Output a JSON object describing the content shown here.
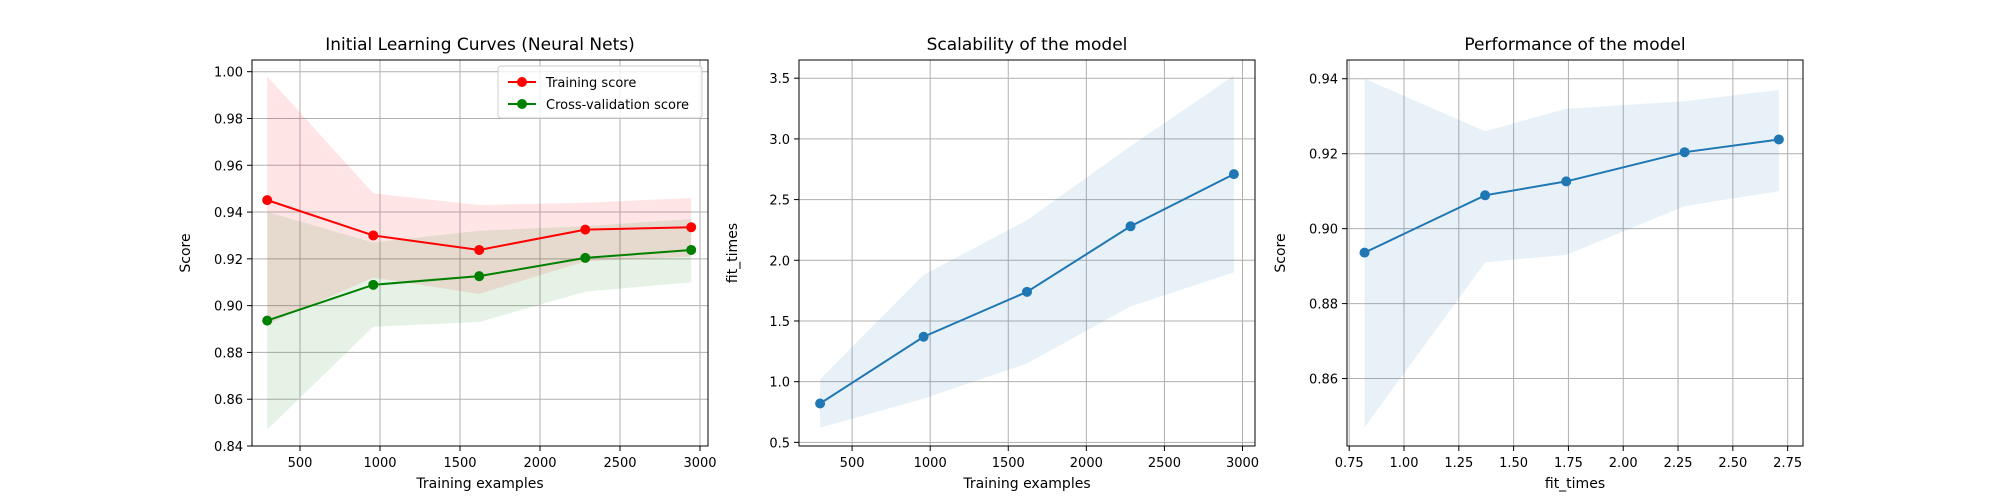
{
  "chart_data": [
    {
      "type": "line",
      "title": "Initial Learning Curves (Neural Nets)",
      "xlabel": "Training examples",
      "ylabel": "Score",
      "xlim": [
        200,
        3050
      ],
      "ylim": [
        0.84,
        1.005
      ],
      "xticks": [
        500,
        1000,
        1500,
        2000,
        2500,
        3000
      ],
      "yticks": [
        0.84,
        0.86,
        0.88,
        0.9,
        0.92,
        0.94,
        0.96,
        0.98,
        1.0
      ],
      "ytick_decimals": 2,
      "xtick_decimals": 0,
      "grid": true,
      "legend": "top-right",
      "x": [
        295,
        958,
        1620,
        2283,
        2945
      ],
      "series": [
        {
          "name": "Training score",
          "color": "#ff0000",
          "fill": "#ff0000",
          "values": [
            0.9451,
            0.93,
            0.9238,
            0.9325,
            0.9335
          ],
          "lower": [
            0.892,
            0.912,
            0.905,
            0.919,
            0.921
          ],
          "upper": [
            0.998,
            0.948,
            0.943,
            0.944,
            0.946
          ]
        },
        {
          "name": "Cross-validation score",
          "color": "#008000",
          "fill": "#008000",
          "values": [
            0.8936,
            0.9089,
            0.9126,
            0.9204,
            0.9238
          ],
          "lower": [
            0.847,
            0.891,
            0.893,
            0.906,
            0.91
          ],
          "upper": [
            0.94,
            0.927,
            0.932,
            0.934,
            0.937
          ]
        }
      ]
    },
    {
      "type": "line",
      "title": "Scalability of the model",
      "xlabel": "Training examples",
      "ylabel": "fit_times",
      "xlim": [
        160,
        3080
      ],
      "ylim": [
        0.47,
        3.65
      ],
      "xticks": [
        500,
        1000,
        1500,
        2000,
        2500,
        3000
      ],
      "yticks": [
        0.5,
        1.0,
        1.5,
        2.0,
        2.5,
        3.0,
        3.5
      ],
      "ytick_decimals": 1,
      "xtick_decimals": 0,
      "grid": true,
      "legend": "none",
      "x": [
        295,
        958,
        1620,
        2283,
        2945
      ],
      "series": [
        {
          "name": "",
          "color": "#1f77b4",
          "fill": "#1f77b4",
          "values": [
            0.82,
            1.37,
            1.74,
            2.28,
            2.71
          ],
          "lower": [
            0.62,
            0.86,
            1.15,
            1.62,
            1.9
          ],
          "upper": [
            1.02,
            1.88,
            2.33,
            2.94,
            3.52
          ]
        }
      ]
    },
    {
      "type": "line",
      "title": "Performance of the model",
      "xlabel": "fit_times",
      "ylabel": "Score",
      "xlim": [
        0.74,
        2.82
      ],
      "ylim": [
        0.842,
        0.945
      ],
      "xticks": [
        0.75,
        1.0,
        1.25,
        1.5,
        1.75,
        2.0,
        2.25,
        2.5,
        2.75
      ],
      "yticks": [
        0.86,
        0.88,
        0.9,
        0.92,
        0.94
      ],
      "ytick_decimals": 2,
      "xtick_decimals": 2,
      "grid": true,
      "legend": "none",
      "x": [
        0.82,
        1.37,
        1.74,
        2.28,
        2.71
      ],
      "series": [
        {
          "name": "",
          "color": "#1f77b4",
          "fill": "#1f77b4",
          "values": [
            0.8936,
            0.9089,
            0.9126,
            0.9204,
            0.9238
          ],
          "lower": [
            0.847,
            0.891,
            0.893,
            0.906,
            0.91
          ],
          "upper": [
            0.94,
            0.926,
            0.932,
            0.934,
            0.937
          ]
        }
      ]
    }
  ]
}
